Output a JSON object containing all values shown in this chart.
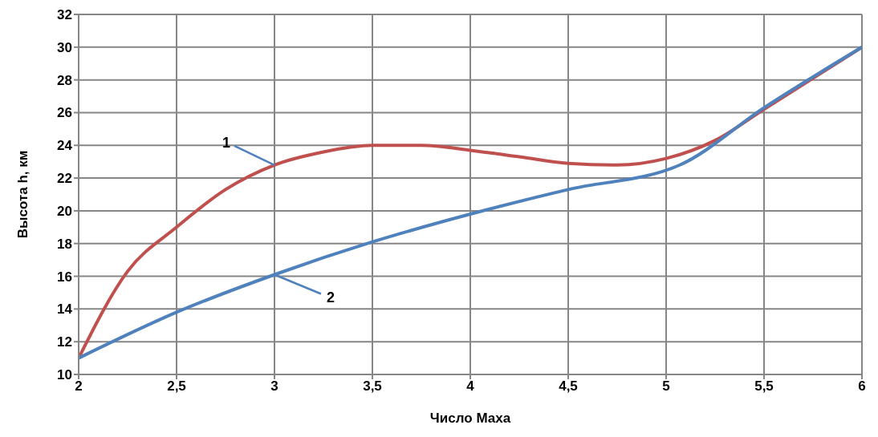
{
  "chart_data": {
    "type": "line",
    "xlabel": "Число Маха",
    "ylabel": "Высота h,  км",
    "xlim": [
      2,
      6
    ],
    "xticks": [
      {
        "value": 2,
        "label": "2"
      },
      {
        "value": 2.5,
        "label": "2,5"
      },
      {
        "value": 3,
        "label": "3"
      },
      {
        "value": 3.5,
        "label": "3,5"
      },
      {
        "value": 4,
        "label": "4"
      },
      {
        "value": 4.5,
        "label": "4,5"
      },
      {
        "value": 5,
        "label": "5"
      },
      {
        "value": 5.5,
        "label": "5,5"
      },
      {
        "value": 6,
        "label": "6"
      }
    ],
    "ylim": [
      10,
      32
    ],
    "yticks": [
      10,
      12,
      14,
      16,
      18,
      20,
      22,
      24,
      26,
      28,
      30,
      32
    ],
    "grid": true,
    "legend": false,
    "marker": "none",
    "line_style": "solid",
    "series": [
      {
        "name": "1",
        "color": "#c0504d",
        "x": [
          2,
          2.25,
          2.5,
          2.75,
          3,
          3.25,
          3.5,
          3.75,
          4,
          4.25,
          4.5,
          4.75,
          5,
          5.25,
          5.5,
          5.75,
          6
        ],
        "values": [
          11,
          16.3,
          19,
          21.3,
          22.8,
          23.6,
          24,
          24,
          23.7,
          23.3,
          22.9,
          22.8,
          23.2,
          24.3,
          26.2,
          28.1,
          30
        ]
      },
      {
        "name": "2",
        "color": "#4f81bd",
        "x": [
          2,
          2.5,
          3,
          3.5,
          4,
          4.5,
          5.07,
          5.5,
          6
        ],
        "values": [
          11,
          13.8,
          16.1,
          18.1,
          19.8,
          21.3,
          22.8,
          26.3,
          30
        ]
      }
    ]
  }
}
